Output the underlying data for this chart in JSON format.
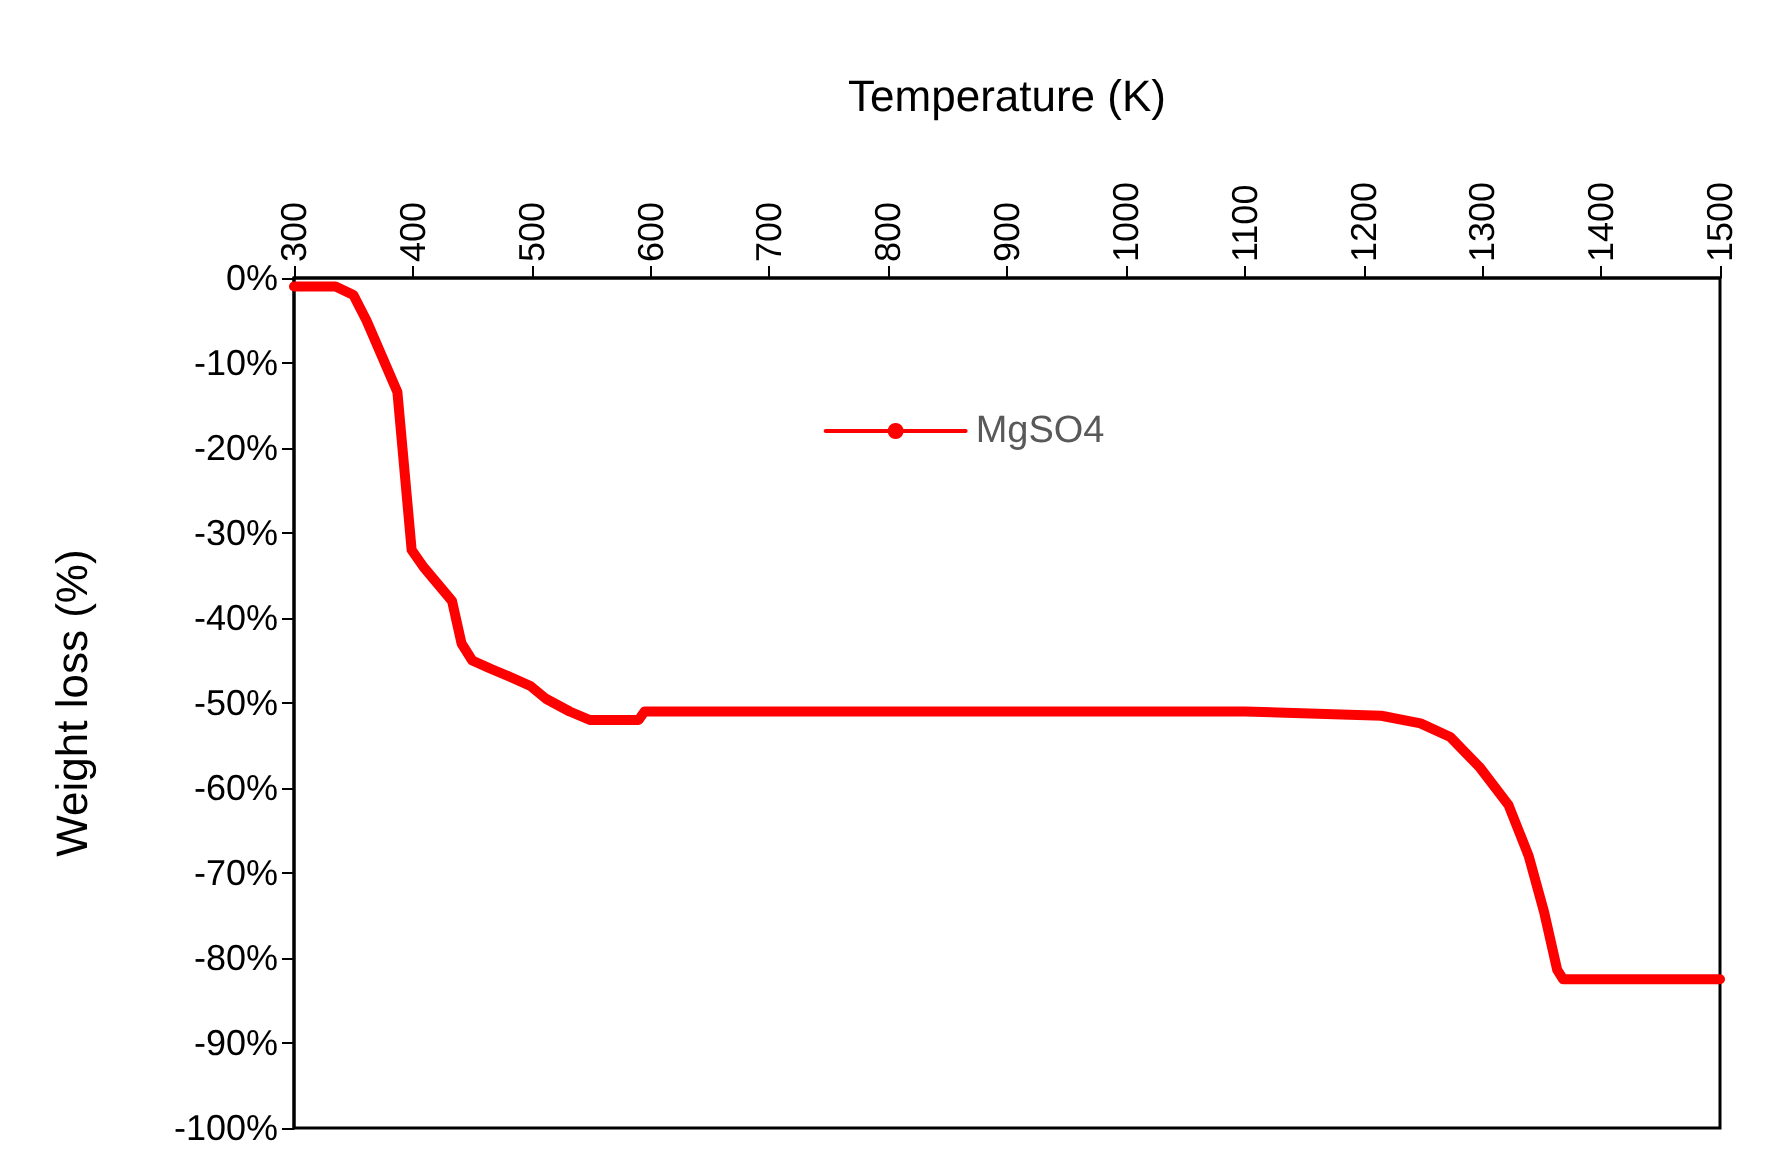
{
  "chart_data": {
    "type": "line",
    "xlabel": "Temperature (K)",
    "ylabel": "Weight loss (%)",
    "xlim": [
      300,
      1500
    ],
    "xticks": [
      300,
      400,
      500,
      600,
      700,
      800,
      900,
      1000,
      1100,
      1200,
      1300,
      1400,
      1500
    ],
    "ylim": [
      -100,
      0
    ],
    "yticks": [
      {
        "value": -100,
        "label": "-100%"
      },
      {
        "value": -90,
        "label": "-90%"
      },
      {
        "value": -80,
        "label": "-80%"
      },
      {
        "value": -70,
        "label": "-70%"
      },
      {
        "value": -60,
        "label": "-60%"
      },
      {
        "value": -50,
        "label": "-50%"
      },
      {
        "value": -40,
        "label": "-40%"
      },
      {
        "value": -30,
        "label": "-30%"
      },
      {
        "value": -20,
        "label": "-20%"
      },
      {
        "value": -10,
        "label": "-10%"
      },
      {
        "value": 0,
        "label": "0%"
      }
    ],
    "x": [
      300,
      335,
      350,
      361,
      387,
      399,
      409,
      433,
      441,
      450,
      466,
      483,
      499,
      512,
      532,
      549,
      590,
      595,
      700,
      900,
      1100,
      1215,
      1248,
      1273,
      1298,
      1322,
      1339,
      1352,
      1363,
      1368,
      1450,
      1500
    ],
    "series": [
      {
        "name": "MgSO4",
        "color": "#ff0000",
        "values": [
          -1,
          -1,
          -2,
          -5,
          -13.4,
          -32,
          -34,
          -38,
          -43,
          -45,
          -46,
          -47,
          -48,
          -49.5,
          -51,
          -52,
          -52,
          -51,
          -51,
          -51,
          -51,
          -51.5,
          -52.4,
          -54,
          -57.6,
          -62,
          -68,
          -74.6,
          -81.4,
          -82.5,
          -82.5,
          -82.5
        ]
      }
    ],
    "legend": "top",
    "grid": false
  }
}
